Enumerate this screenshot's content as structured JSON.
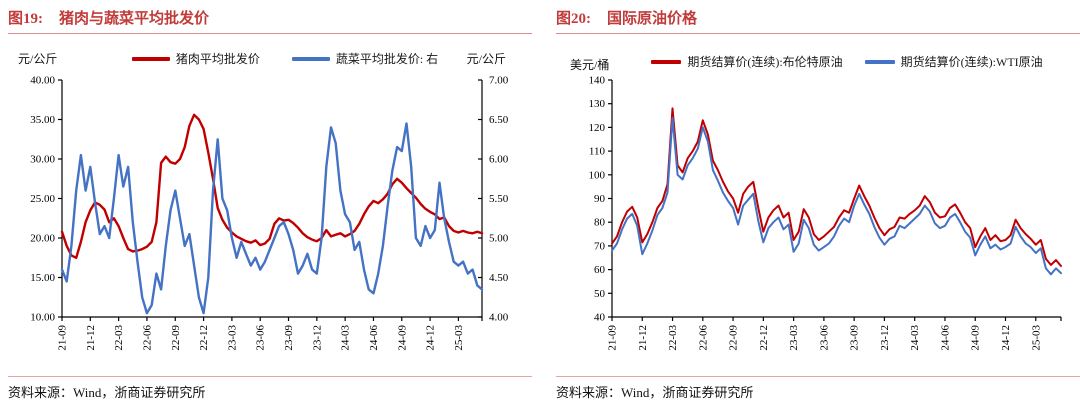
{
  "chart_data": [
    {
      "type": "line",
      "fig_label": "图19:",
      "title": "猪肉与蔬菜平均批发价",
      "unit_left": "元/公斤",
      "unit_right": "元/公斤",
      "source": "资料来源：Wind，浙商证券研究所",
      "legend_position": "top",
      "grid": false,
      "x_ticks": [
        "21-09",
        "21-12",
        "22-03",
        "22-06",
        "22-09",
        "22-12",
        "23-03",
        "23-06",
        "23-09",
        "23-12",
        "24-03",
        "24-06",
        "24-09",
        "24-12",
        "25-03"
      ],
      "x_points_per_month": 2,
      "y_left": {
        "min": 10,
        "max": 40,
        "step": 5,
        "decimals": 2
      },
      "y_right": {
        "min": 4,
        "max": 7,
        "step": 0.5,
        "decimals": 2
      },
      "series": [
        {
          "name": "猪肉平均批发价",
          "axis": "left",
          "color": "#C00000",
          "values": [
            20.8,
            19.0,
            17.8,
            17.5,
            19.5,
            22.0,
            23.5,
            24.5,
            24.2,
            23.6,
            22.0,
            22.5,
            21.5,
            20.0,
            18.6,
            18.3,
            18.4,
            18.6,
            18.9,
            19.5,
            22.0,
            29.5,
            30.3,
            29.6,
            29.4,
            30.0,
            31.5,
            34.2,
            35.6,
            35.0,
            33.8,
            30.8,
            27.5,
            23.8,
            22.3,
            21.3,
            20.7,
            20.2,
            19.9,
            19.6,
            19.4,
            19.7,
            19.1,
            19.3,
            19.9,
            21.8,
            22.5,
            22.2,
            22.3,
            21.9,
            21.3,
            20.6,
            20.1,
            19.8,
            19.6,
            20.0,
            21.0,
            20.2,
            20.4,
            20.6,
            20.2,
            20.5,
            20.9,
            21.8,
            23.0,
            24.0,
            24.7,
            24.4,
            24.9,
            25.6,
            26.8,
            27.5,
            27.0,
            26.3,
            25.7,
            25.1,
            24.3,
            23.7,
            23.3,
            23.0,
            22.4,
            22.6,
            21.5,
            20.9,
            20.7,
            20.9,
            20.7,
            20.6,
            20.8,
            20.6
          ]
        },
        {
          "name": "蔬菜平均批发价: 右",
          "axis": "right",
          "color": "#4472C4",
          "values": [
            4.6,
            4.45,
            4.9,
            5.6,
            6.05,
            5.6,
            5.9,
            5.45,
            5.05,
            5.15,
            5.0,
            5.5,
            6.05,
            5.65,
            5.9,
            5.2,
            4.7,
            4.25,
            4.05,
            4.15,
            4.55,
            4.35,
            4.9,
            5.35,
            5.6,
            5.25,
            4.9,
            5.05,
            4.65,
            4.25,
            4.05,
            4.5,
            5.6,
            6.25,
            5.5,
            5.35,
            5.0,
            4.75,
            4.95,
            4.8,
            4.65,
            4.75,
            4.6,
            4.7,
            4.85,
            5.0,
            5.15,
            5.2,
            5.05,
            4.85,
            4.55,
            4.65,
            4.8,
            4.6,
            4.55,
            5.0,
            5.9,
            6.4,
            6.2,
            5.6,
            5.3,
            5.2,
            4.85,
            4.95,
            4.6,
            4.35,
            4.3,
            4.55,
            4.9,
            5.4,
            5.85,
            6.15,
            6.1,
            6.45,
            5.9,
            5.0,
            4.9,
            5.15,
            5.0,
            5.1,
            5.7,
            5.25,
            4.95,
            4.7,
            4.65,
            4.7,
            4.55,
            4.6,
            4.4,
            4.35
          ]
        }
      ]
    },
    {
      "type": "line",
      "fig_label": "图20:",
      "title": "国际原油价格",
      "unit_left": "美元/桶",
      "source": "资料来源：Wind，浙商证券研究所",
      "legend_position": "top",
      "grid": false,
      "x_ticks": [
        "21-09",
        "21-12",
        "22-03",
        "22-06",
        "22-09",
        "22-12",
        "23-03",
        "23-06",
        "23-09",
        "23-12",
        "24-03",
        "24-06",
        "24-09",
        "24-12",
        "25-03"
      ],
      "x_points_per_month": 2,
      "y_left": {
        "min": 40,
        "max": 140,
        "step": 10,
        "decimals": 0
      },
      "series": [
        {
          "name": "期货结算价(连续):布伦特原油",
          "axis": "left",
          "color": "#C00000",
          "values": [
            71,
            74,
            80,
            84.5,
            86.5,
            82,
            71.5,
            75,
            80,
            86,
            89,
            96,
            128,
            104,
            101,
            107,
            110,
            114,
            123,
            117,
            106,
            102,
            97,
            93,
            90,
            84,
            92,
            95,
            97,
            86,
            76,
            82,
            85,
            87,
            82,
            84,
            72.5,
            76,
            85.5,
            82,
            75,
            72.5,
            74,
            76,
            78,
            82,
            85,
            84,
            90,
            95.5,
            91,
            87,
            82,
            77.5,
            74.5,
            77,
            78,
            82,
            81.5,
            83.5,
            85,
            87,
            91,
            88.5,
            84,
            82,
            82.5,
            86,
            87.5,
            84,
            80,
            77.5,
            69.5,
            74,
            77.5,
            72.5,
            74.5,
            72,
            72.5,
            74.5,
            81,
            77.5,
            75,
            73,
            70.5,
            72.5,
            64.5,
            62,
            64,
            61.5
          ]
        },
        {
          "name": "期货结算价(连续):WTI原油",
          "axis": "left",
          "color": "#4472C4",
          "values": [
            68,
            71,
            77,
            81.5,
            83.5,
            78.5,
            66.5,
            71,
            76.5,
            83,
            86,
            92.5,
            124,
            100,
            98,
            104,
            107,
            111,
            120,
            114,
            102,
            97.5,
            92.5,
            89,
            86,
            79,
            87,
            89.5,
            92,
            80.5,
            71.5,
            77.5,
            80,
            82,
            77,
            79,
            67.5,
            71,
            81,
            77.5,
            70.5,
            68,
            69.5,
            71,
            74,
            78.5,
            81.5,
            80,
            87,
            92,
            87.5,
            83.5,
            78,
            73.5,
            70.5,
            73,
            74,
            78.5,
            77.5,
            79.5,
            81.5,
            83.5,
            87,
            84.5,
            79.5,
            77.5,
            78.5,
            82,
            83.5,
            80,
            76,
            73.5,
            66,
            70.5,
            74,
            69,
            70.5,
            68.5,
            69.5,
            71,
            78,
            74,
            71,
            69.5,
            67,
            69,
            60.5,
            58,
            60.5,
            58.5
          ]
        }
      ]
    }
  ]
}
